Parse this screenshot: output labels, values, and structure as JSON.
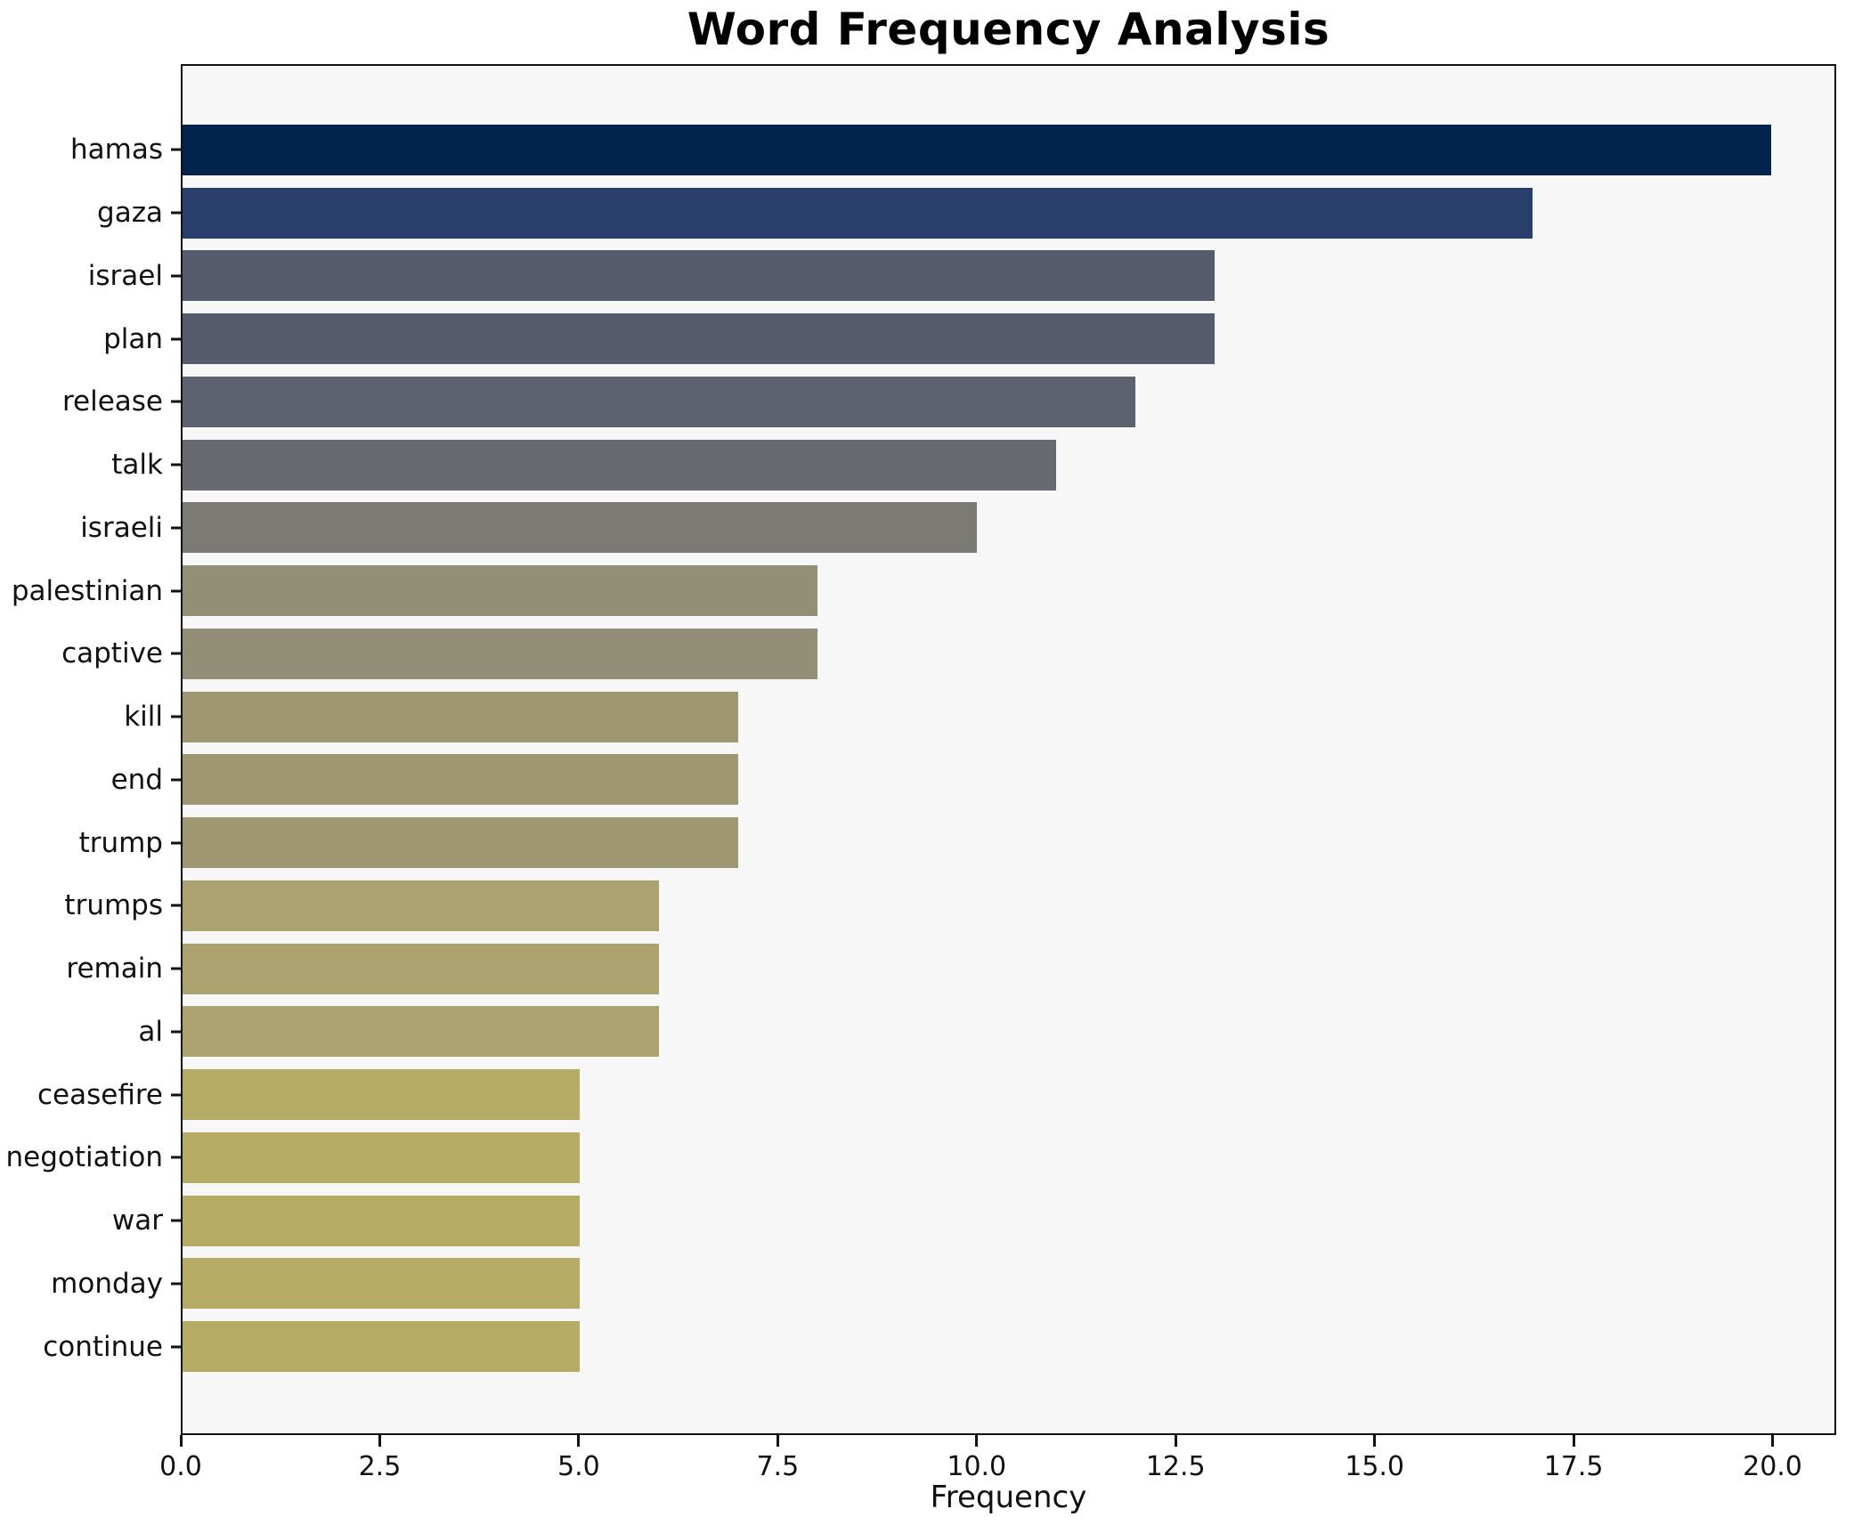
{
  "chart_data": {
    "type": "bar",
    "orientation": "horizontal",
    "title": "Word Frequency Analysis",
    "xlabel": "Frequency",
    "ylabel": "",
    "categories": [
      "hamas",
      "gaza",
      "israel",
      "plan",
      "release",
      "talk",
      "israeli",
      "palestinian",
      "captive",
      "kill",
      "end",
      "trump",
      "trumps",
      "remain",
      "al",
      "ceasefire",
      "negotiation",
      "war",
      "monday",
      "continue"
    ],
    "values": [
      20,
      17,
      13,
      13,
      12,
      11,
      10,
      8,
      8,
      7,
      7,
      7,
      6,
      6,
      6,
      5,
      5,
      5,
      5,
      5
    ],
    "bar_colors": [
      "#02234d",
      "#283e6b",
      "#565c6d",
      "#565c6d",
      "#5e626f",
      "#686a72",
      "#7b7a75",
      "#938e76",
      "#938e76",
      "#9e9772",
      "#9e9772",
      "#9e9772",
      "#aba26f",
      "#aba26f",
      "#aba26f",
      "#b5ab65",
      "#b5ab65",
      "#b5ab65",
      "#b5ab65",
      "#b5ab65"
    ],
    "xlim": [
      0,
      20.8
    ],
    "xticks": [
      0,
      2.5,
      5,
      7.5,
      10,
      12.5,
      15,
      17.5,
      20
    ],
    "xtick_labels": [
      "0.0",
      "2.5",
      "5.0",
      "7.5",
      "10.0",
      "12.5",
      "15.0",
      "17.5",
      "20.0"
    ],
    "grid": false,
    "legend": null,
    "colors": {
      "plot_background": "#f7f7f8",
      "figure_background": "#ffffff",
      "spine": "#111111",
      "text": "#111111"
    }
  }
}
